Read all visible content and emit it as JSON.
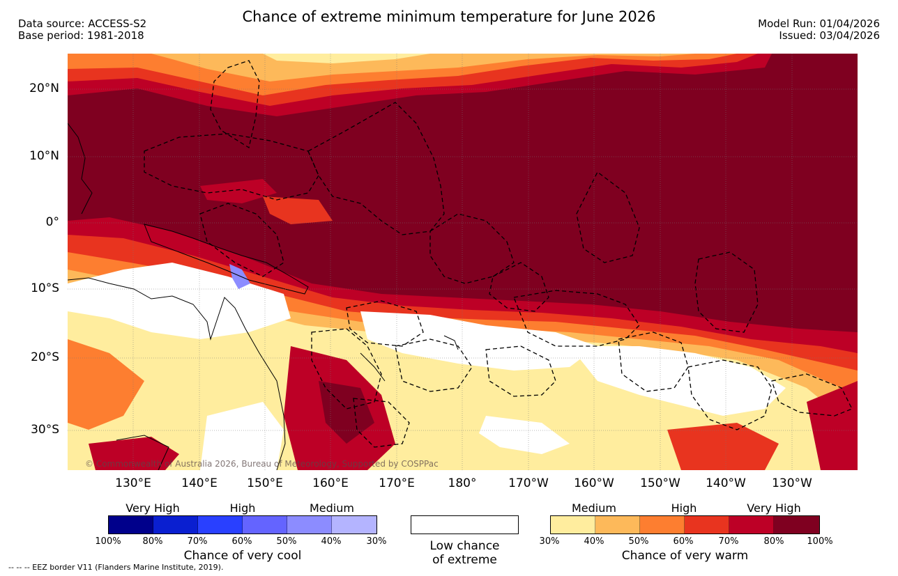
{
  "title": "Chance of extreme minimum temperature for June 2026",
  "data_source": "Data source: ACCESS-S2",
  "base_period": "Base period: 1981-2018",
  "model_run": "Model Run: 01/04/2026",
  "issued": "Issued: 03/04/2026",
  "lat_labels": [
    "20°N",
    "10°N",
    "0°",
    "10°S",
    "20°S",
    "30°S"
  ],
  "lon_labels": [
    "130°E",
    "140°E",
    "150°E",
    "160°E",
    "170°E",
    "180°",
    "170°W",
    "160°W",
    "150°W",
    "140°W",
    "130°W"
  ],
  "copyright": "© Commonwealth of Australia 2026, Bureau of Meteorology, Supported by COSPPac",
  "cool_scale": {
    "title": "Chance of very cool",
    "categories": [
      "Very High",
      "High",
      "Medium"
    ],
    "ticks": [
      "100%",
      "80%",
      "70%",
      "60%",
      "50%",
      "40%",
      "30%"
    ],
    "colors": [
      "#00008b",
      "#0a1fd0",
      "#2940ff",
      "#6464ff",
      "#8c8cff",
      "#b4b4ff"
    ]
  },
  "neutral": {
    "line1": "Low chance",
    "line2": "of extreme",
    "color": "#ffffff"
  },
  "warm_scale": {
    "title": "Chance of very warm",
    "categories": [
      "Medium",
      "High",
      "Very High"
    ],
    "ticks": [
      "30%",
      "40%",
      "50%",
      "60%",
      "70%",
      "80%",
      "100%"
    ],
    "colors": [
      "#ffed9e",
      "#fdb95a",
      "#fd7e30",
      "#e8341f",
      "#bd0026",
      "#7f0020"
    ]
  },
  "eez_note": "--  --  -- EEZ border V11 (Flanders Marine Institute, 2019)."
}
